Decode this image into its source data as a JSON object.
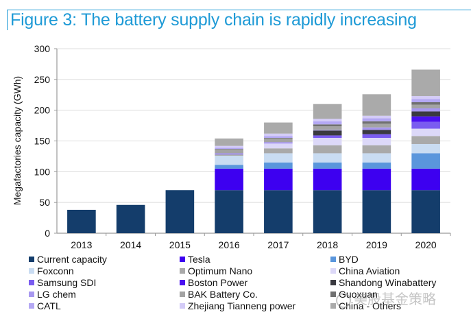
{
  "figure": {
    "title": "Figure 3: The battery supply chain is rapidly increasing",
    "accent_color": "#1e9ad6"
  },
  "watermark": "美股基金策略",
  "chart_data": {
    "type": "bar",
    "stacked": true,
    "title": "Figure 3: The battery supply chain is rapidly increasing",
    "xlabel": "",
    "ylabel": "Megafactories capacity (GWh)",
    "ylim": [
      0,
      300
    ],
    "yticks": [
      0,
      50,
      100,
      150,
      200,
      250,
      300
    ],
    "grid": true,
    "legend_position": "bottom",
    "categories": [
      "2013",
      "2014",
      "2015",
      "2016",
      "2017",
      "2018",
      "2019",
      "2020"
    ],
    "series": [
      {
        "name": "Current capacity",
        "color": "#143d6b",
        "values": [
          38,
          46,
          70,
          70,
          70,
          70,
          70,
          70
        ]
      },
      {
        "name": "Tesla",
        "color": "#3d00f0",
        "values": [
          0,
          0,
          0,
          35,
          35,
          35,
          35,
          35
        ]
      },
      {
        "name": "BYD",
        "color": "#5a96dc",
        "values": [
          0,
          0,
          0,
          6,
          10,
          10,
          10,
          25
        ]
      },
      {
        "name": "Foxconn",
        "color": "#c9dcf2",
        "values": [
          0,
          0,
          0,
          15,
          15,
          15,
          15,
          15
        ]
      },
      {
        "name": "Optimum Nano",
        "color": "#a9a9a9",
        "values": [
          0,
          0,
          0,
          2,
          8,
          13,
          13,
          13
        ]
      },
      {
        "name": "China Aviation",
        "color": "#dcd8f8",
        "values": [
          0,
          0,
          0,
          0,
          8,
          12,
          12,
          12
        ]
      },
      {
        "name": "Samsung SDI",
        "color": "#7a5cf0",
        "values": [
          0,
          0,
          0,
          1,
          1,
          4,
          6,
          11
        ]
      },
      {
        "name": "Boston Power",
        "color": "#4a10f0",
        "values": [
          0,
          0,
          0,
          0,
          0,
          0,
          0,
          9
        ]
      },
      {
        "name": "Shandong Winabattery",
        "color": "#3a3a40",
        "values": [
          0,
          0,
          0,
          0,
          0,
          8,
          7,
          8
        ]
      },
      {
        "name": "LG chem",
        "color": "#a898f0",
        "values": [
          0,
          0,
          0,
          1,
          1,
          1,
          4,
          5
        ]
      },
      {
        "name": "BAK Battery Co.",
        "color": "#a3a3a3",
        "values": [
          0,
          0,
          0,
          6,
          6,
          6,
          6,
          6
        ]
      },
      {
        "name": "Guoxuan",
        "color": "#707070",
        "values": [
          0,
          0,
          0,
          1,
          1,
          3,
          4,
          4
        ]
      },
      {
        "name": "CATL",
        "color": "#b4a8f4",
        "values": [
          0,
          0,
          0,
          2,
          3,
          5,
          5,
          5
        ]
      },
      {
        "name": "Zhejiang Tianneng power",
        "color": "#d4ccf8",
        "values": [
          0,
          0,
          0,
          3,
          4,
          4,
          4,
          5
        ]
      },
      {
        "name": "China - Others",
        "color": "#aaaaaa",
        "values": [
          0,
          0,
          0,
          12,
          18,
          24,
          35,
          43
        ]
      }
    ]
  }
}
